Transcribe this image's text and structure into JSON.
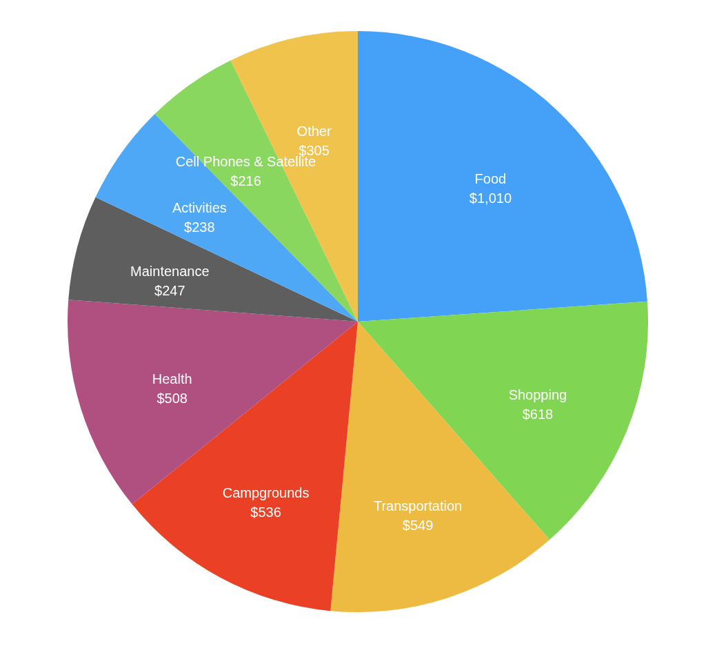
{
  "chart_data": {
    "type": "pie",
    "categories": [
      "Food",
      "Shopping",
      "Transportation",
      "Campgrounds",
      "Health",
      "Maintenance",
      "Activities",
      "Cell Phones & Satellite",
      "Other"
    ],
    "values": [
      1010,
      618,
      549,
      536,
      508,
      247,
      238,
      216,
      305
    ],
    "colors": [
      "#44a1f7",
      "#80d552",
      "#eebb42",
      "#ea4026",
      "#b05081",
      "#5e5e5e",
      "#4ea8f5",
      "#8ad75f",
      "#f0c34c"
    ],
    "value_labels": [
      "$1,010",
      "$618",
      "$549",
      "$536",
      "$508",
      "$247",
      "$238",
      "$216",
      "$305"
    ]
  }
}
